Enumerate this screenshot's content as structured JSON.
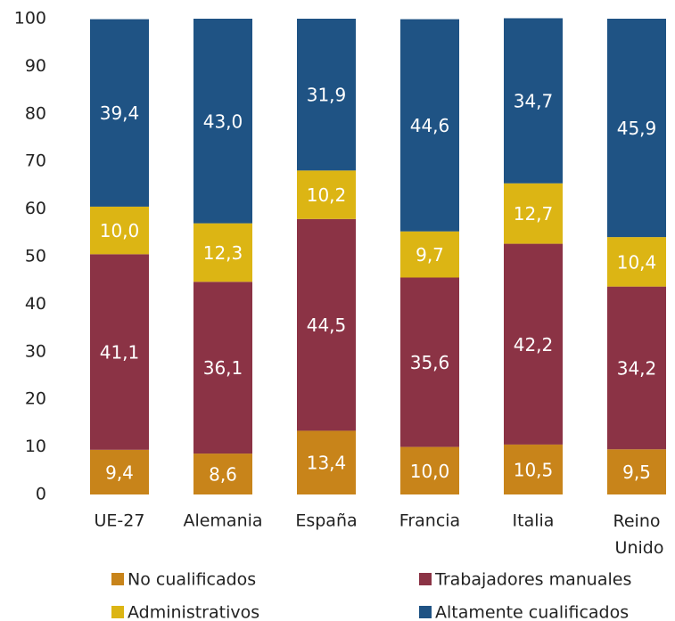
{
  "chart_data": {
    "type": "stacked_bar",
    "categories": [
      "UE-27",
      "Alemania",
      "España",
      "Francia",
      "Italia",
      "Reino Unido"
    ],
    "series": [
      {
        "name": "No cualificados",
        "color": "#c8841a",
        "values": [
          9.4,
          8.6,
          13.4,
          10.0,
          10.5,
          9.5
        ],
        "value_labels": [
          "9,4",
          "8,6",
          "13,4",
          "10,0",
          "10,5",
          "9,5"
        ]
      },
      {
        "name": "Trabajadores manuales",
        "color": "#8b3345",
        "values": [
          41.1,
          36.1,
          44.5,
          35.6,
          42.2,
          34.2
        ],
        "value_labels": [
          "41,1",
          "36,1",
          "44,5",
          "35,6",
          "42,2",
          "34,2"
        ]
      },
      {
        "name": "Administrativos",
        "color": "#dcb514",
        "values": [
          10.0,
          12.3,
          10.2,
          9.7,
          12.7,
          10.4
        ],
        "value_labels": [
          "10,0",
          "12,3",
          "10,2",
          "9,7",
          "12,7",
          "10,4"
        ]
      },
      {
        "name": "Altamente cualificados",
        "color": "#1f5384",
        "values": [
          39.4,
          43.0,
          31.9,
          44.6,
          34.7,
          45.9
        ],
        "value_labels": [
          "39,4",
          "43,0",
          "31,9",
          "44,6",
          "34,7",
          "45,9"
        ]
      }
    ],
    "ylim": [
      0,
      100
    ],
    "yticks": [
      0,
      10,
      20,
      30,
      40,
      50,
      60,
      70,
      80,
      90,
      100
    ],
    "legend": "bottom"
  }
}
